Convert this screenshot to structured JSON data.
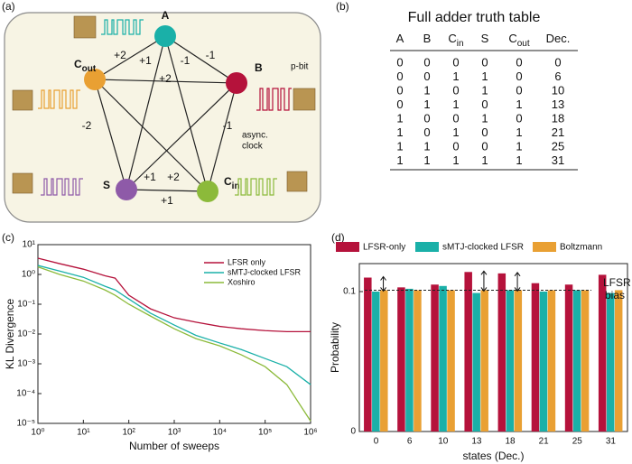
{
  "panel_labels": [
    "(a)",
    "(b)",
    "(c)",
    "(d)"
  ],
  "diagram": {
    "nodes": [
      {
        "label": "A"
      },
      {
        "label": "C",
        "sub": "out"
      },
      {
        "label": "B"
      },
      {
        "label": "S"
      },
      {
        "label": "C",
        "sub": "in"
      }
    ],
    "weights": [
      "+2",
      "+1",
      "-1",
      "-1",
      "+2",
      "-2",
      "-1",
      "+1",
      "+2",
      "+1"
    ],
    "notes": [
      "p-bit",
      "async.",
      "clock"
    ]
  },
  "table": {
    "title": "Full adder truth table",
    "header": [
      {
        "text": "A"
      },
      {
        "text": "B"
      },
      {
        "text": "C",
        "sub": "in"
      },
      {
        "text": "S"
      },
      {
        "text": "C",
        "sub": "out"
      },
      {
        "text": "Dec."
      }
    ],
    "rows": [
      [
        0,
        0,
        0,
        0,
        0,
        0
      ],
      [
        0,
        0,
        1,
        1,
        0,
        6
      ],
      [
        0,
        1,
        0,
        1,
        0,
        10
      ],
      [
        0,
        1,
        1,
        0,
        1,
        13
      ],
      [
        1,
        0,
        0,
        1,
        0,
        18
      ],
      [
        1,
        0,
        1,
        0,
        1,
        21
      ],
      [
        1,
        1,
        0,
        0,
        1,
        25
      ],
      [
        1,
        1,
        1,
        1,
        1,
        31
      ]
    ]
  },
  "chart_data": [
    {
      "type": "line",
      "x_label": "Number of sweeps",
      "y_label": "KL Divergence",
      "log_x": true,
      "log_y": true,
      "x": [
        1,
        3,
        10,
        30,
        50,
        100,
        300,
        1000,
        3000,
        10000,
        30000,
        100000,
        300000,
        1000000
      ],
      "series": [
        {
          "name": "LFSR only",
          "color": "#b5123b",
          "values": [
            3.5,
            2.3,
            1.5,
            0.9,
            0.75,
            0.2,
            0.07,
            0.035,
            0.025,
            0.018,
            0.015,
            0.013,
            0.012,
            0.012
          ]
        },
        {
          "name": "sMTJ-clocked LFSR",
          "color": "#1ab0a8",
          "values": [
            2.0,
            1.3,
            0.8,
            0.4,
            0.3,
            0.15,
            0.05,
            0.02,
            0.009,
            0.005,
            0.003,
            0.0015,
            0.0008,
            0.0002
          ]
        },
        {
          "name": "Xoshiro",
          "color": "#8cba3a",
          "values": [
            1.8,
            1.0,
            0.6,
            0.3,
            0.2,
            0.1,
            0.04,
            0.015,
            0.007,
            0.004,
            0.002,
            0.0008,
            0.0002,
            1.2e-05
          ]
        }
      ],
      "xlim": [
        1,
        1000000
      ],
      "ylim": [
        1e-05,
        10
      ],
      "xticks": [
        {
          "value": 1,
          "label": "10⁰"
        },
        {
          "value": 10,
          "label": "10¹"
        },
        {
          "value": 100,
          "label": "10²"
        },
        {
          "value": 1000,
          "label": "10³"
        },
        {
          "value": 10000,
          "label": "10⁴"
        },
        {
          "value": 100000,
          "label": "10⁵"
        },
        {
          "value": 1000000,
          "label": "10⁶"
        }
      ],
      "yticks": [
        {
          "value": 1e-05,
          "label": "10⁻⁵"
        },
        {
          "value": 0.0001,
          "label": "10⁻⁴"
        },
        {
          "value": 0.001,
          "label": "10⁻³"
        },
        {
          "value": 0.01,
          "label": "10⁻²"
        },
        {
          "value": 0.1,
          "label": "10⁻¹"
        },
        {
          "value": 1,
          "label": "10⁰"
        },
        {
          "value": 10,
          "label": "10¹"
        }
      ]
    },
    {
      "type": "bar",
      "x_label": "states (Dec.)",
      "y_label": "Probability",
      "annotation": [
        "LFSR",
        "bias"
      ],
      "categories": [
        "0",
        "6",
        "10",
        "13",
        "18",
        "21",
        "25",
        "31"
      ],
      "series": [
        {
          "name": "LFSR-only",
          "color": "#b5123b",
          "values": [
            0.11,
            0.103,
            0.105,
            0.114,
            0.113,
            0.106,
            0.105,
            0.112
          ]
        },
        {
          "name": "sMTJ-clocked LFSR",
          "color": "#1ab0a8",
          "values": [
            0.1,
            0.102,
            0.104,
            0.099,
            0.101,
            0.1,
            0.101,
            0.099
          ]
        },
        {
          "name": "Boltzmann",
          "color": "#e9a033",
          "values": [
            0.101,
            0.101,
            0.101,
            0.101,
            0.101,
            0.101,
            0.101,
            0.101
          ]
        }
      ],
      "ylim": [
        0,
        0.12
      ],
      "yticks": [
        0,
        0.1
      ]
    }
  ]
}
